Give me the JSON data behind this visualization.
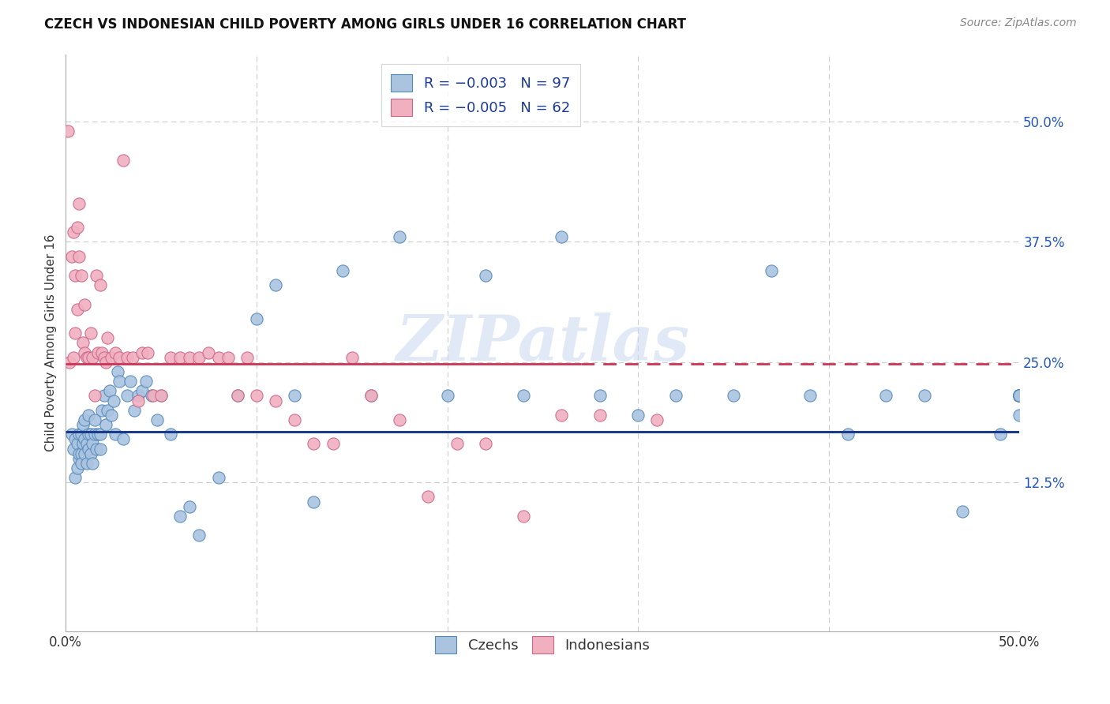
{
  "title": "CZECH VS INDONESIAN CHILD POVERTY AMONG GIRLS UNDER 16 CORRELATION CHART",
  "source": "Source: ZipAtlas.com",
  "ylabel": "Child Poverty Among Girls Under 16",
  "ytick_values": [
    0.125,
    0.25,
    0.375,
    0.5
  ],
  "ytick_labels": [
    "12.5%",
    "25.0%",
    "37.5%",
    "50.0%"
  ],
  "xlim": [
    0.0,
    0.5
  ],
  "ylim": [
    -0.03,
    0.57
  ],
  "czechs_color": "#aac4e0",
  "czechs_edge": "#5588bb",
  "indonesians_color": "#f0b0c0",
  "indonesians_edge": "#cc6688",
  "czech_line_color": "#1a3a8a",
  "indo_line_color": "#cc3355",
  "watermark": "ZIPatlas",
  "czech_line_y": 0.178,
  "indo_line_y": 0.248,
  "czechs_x": [
    0.003,
    0.004,
    0.005,
    0.005,
    0.006,
    0.006,
    0.007,
    0.007,
    0.007,
    0.008,
    0.008,
    0.008,
    0.009,
    0.009,
    0.01,
    0.01,
    0.01,
    0.011,
    0.011,
    0.012,
    0.012,
    0.012,
    0.013,
    0.013,
    0.014,
    0.014,
    0.015,
    0.015,
    0.016,
    0.017,
    0.018,
    0.018,
    0.019,
    0.02,
    0.021,
    0.022,
    0.023,
    0.024,
    0.025,
    0.026,
    0.027,
    0.028,
    0.03,
    0.032,
    0.034,
    0.036,
    0.038,
    0.04,
    0.042,
    0.045,
    0.048,
    0.05,
    0.055,
    0.06,
    0.065,
    0.07,
    0.08,
    0.09,
    0.1,
    0.11,
    0.12,
    0.13,
    0.145,
    0.16,
    0.175,
    0.2,
    0.22,
    0.24,
    0.26,
    0.28,
    0.3,
    0.32,
    0.35,
    0.37,
    0.39,
    0.41,
    0.43,
    0.45,
    0.47,
    0.49,
    0.5,
    0.5,
    0.5,
    0.5,
    0.5,
    0.5,
    0.5,
    0.5,
    0.5,
    0.5,
    0.5,
    0.5,
    0.5,
    0.5,
    0.5,
    0.5,
    0.5
  ],
  "czechs_y": [
    0.175,
    0.16,
    0.13,
    0.17,
    0.14,
    0.165,
    0.15,
    0.175,
    0.155,
    0.175,
    0.155,
    0.145,
    0.165,
    0.185,
    0.155,
    0.17,
    0.19,
    0.145,
    0.165,
    0.16,
    0.175,
    0.195,
    0.155,
    0.175,
    0.145,
    0.165,
    0.175,
    0.19,
    0.16,
    0.175,
    0.16,
    0.175,
    0.2,
    0.215,
    0.185,
    0.2,
    0.22,
    0.195,
    0.21,
    0.175,
    0.24,
    0.23,
    0.17,
    0.215,
    0.23,
    0.2,
    0.215,
    0.22,
    0.23,
    0.215,
    0.19,
    0.215,
    0.175,
    0.09,
    0.1,
    0.07,
    0.13,
    0.215,
    0.295,
    0.33,
    0.215,
    0.105,
    0.345,
    0.215,
    0.38,
    0.215,
    0.34,
    0.215,
    0.38,
    0.215,
    0.195,
    0.215,
    0.215,
    0.345,
    0.215,
    0.175,
    0.215,
    0.215,
    0.095,
    0.175,
    0.215,
    0.215,
    0.215,
    0.215,
    0.195,
    0.215,
    0.215,
    0.215,
    0.215,
    0.215,
    0.215,
    0.215,
    0.215,
    0.215,
    0.215,
    0.215,
    0.215
  ],
  "indonesians_x": [
    0.001,
    0.002,
    0.003,
    0.004,
    0.004,
    0.005,
    0.005,
    0.006,
    0.006,
    0.007,
    0.007,
    0.008,
    0.009,
    0.01,
    0.01,
    0.011,
    0.012,
    0.013,
    0.014,
    0.015,
    0.016,
    0.017,
    0.018,
    0.019,
    0.02,
    0.021,
    0.022,
    0.024,
    0.026,
    0.028,
    0.03,
    0.032,
    0.035,
    0.038,
    0.04,
    0.043,
    0.046,
    0.05,
    0.055,
    0.06,
    0.065,
    0.07,
    0.075,
    0.08,
    0.085,
    0.09,
    0.095,
    0.1,
    0.11,
    0.12,
    0.13,
    0.14,
    0.15,
    0.16,
    0.175,
    0.19,
    0.205,
    0.22,
    0.24,
    0.26,
    0.28,
    0.31
  ],
  "indonesians_y": [
    0.49,
    0.25,
    0.36,
    0.255,
    0.385,
    0.28,
    0.34,
    0.305,
    0.39,
    0.36,
    0.415,
    0.34,
    0.27,
    0.31,
    0.26,
    0.255,
    0.255,
    0.28,
    0.255,
    0.215,
    0.34,
    0.26,
    0.33,
    0.26,
    0.255,
    0.25,
    0.275,
    0.255,
    0.26,
    0.255,
    0.46,
    0.255,
    0.255,
    0.21,
    0.26,
    0.26,
    0.215,
    0.215,
    0.255,
    0.255,
    0.255,
    0.255,
    0.26,
    0.255,
    0.255,
    0.215,
    0.255,
    0.215,
    0.21,
    0.19,
    0.165,
    0.165,
    0.255,
    0.215,
    0.19,
    0.11,
    0.165,
    0.165,
    0.09,
    0.195,
    0.195,
    0.19
  ]
}
